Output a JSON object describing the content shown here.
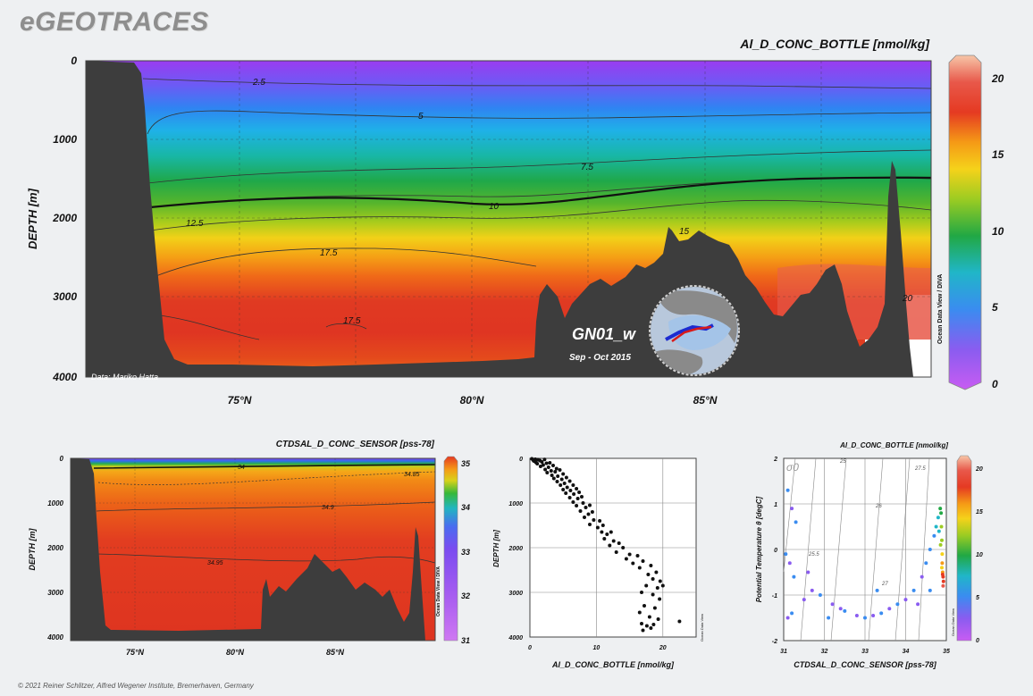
{
  "header": {
    "logo": "eGEOTRACES",
    "copyright": "© 2021 Reiner Schlitzer, Alfred Wegener Institute, Bremerhaven, Germany"
  },
  "chart_data": [
    {
      "type": "heatmap",
      "title": "Al_D_CONC_BOTTLE [nmol/kg]",
      "xlabel": "",
      "ylabel": "DEPTH [m]",
      "x_ticks": [
        "75°N",
        "80°N",
        "85°N"
      ],
      "x_tick_values": [
        75,
        80,
        85
      ],
      "xlim": [
        71.5,
        89.5
      ],
      "y_ticks": [
        "0",
        "1000",
        "2000",
        "3000",
        "4000"
      ],
      "y_tick_values": [
        0,
        1000,
        2000,
        3000,
        4000
      ],
      "ylim": [
        4000,
        0
      ],
      "colorbar": {
        "ticks": [
          "0",
          "5",
          "10",
          "15",
          "20"
        ],
        "range": [
          0,
          21
        ]
      },
      "contour_labels": [
        "2.5",
        "5",
        "7.5",
        "10",
        "12.5",
        "17.5",
        "17.5",
        "15",
        "20"
      ],
      "credit": "Data: Mariko Hatta",
      "section_label": "GN01_w",
      "date_label": "Sep - Oct 2015",
      "watermark": "Ocean Data View / DIVA"
    },
    {
      "type": "heatmap",
      "title": "CTDSAL_D_CONC_SENSOR [pss-78]",
      "xlabel": "",
      "ylabel": "DEPTH [m]",
      "x_ticks": [
        "75°N",
        "80°N",
        "85°N"
      ],
      "x_tick_values": [
        75,
        80,
        85
      ],
      "xlim": [
        71.5,
        89.5
      ],
      "y_ticks": [
        "0",
        "1000",
        "2000",
        "3000",
        "4000"
      ],
      "y_tick_values": [
        0,
        1000,
        2000,
        3000,
        4000
      ],
      "ylim": [
        4100,
        0
      ],
      "colorbar": {
        "ticks": [
          "31",
          "32",
          "33",
          "34",
          "35"
        ],
        "range": [
          31,
          35
        ]
      },
      "contour_labels": [
        "34",
        "34.85",
        "34.9",
        "34.95"
      ],
      "watermark": "Ocean Data View / DIVA"
    },
    {
      "type": "scatter",
      "title": "",
      "xlabel": "Al_D_CONC_BOTTLE [nmol/kg]",
      "ylabel": "DEPTH [m]",
      "x_ticks": [
        "0",
        "10",
        "20"
      ],
      "y_ticks": [
        "0",
        "1000",
        "2000",
        "3000",
        "4000"
      ],
      "xlim": [
        0,
        25
      ],
      "ylim": [
        4000,
        0
      ],
      "watermark": "Ocean Data View",
      "points": [
        [
          0.3,
          10
        ],
        [
          0.8,
          20
        ],
        [
          0.5,
          40
        ],
        [
          1.2,
          30
        ],
        [
          0.6,
          60
        ],
        [
          1.5,
          50
        ],
        [
          2.2,
          25
        ],
        [
          0.9,
          90
        ],
        [
          1.8,
          80
        ],
        [
          1.1,
          120
        ],
        [
          2.5,
          110
        ],
        [
          2.0,
          150
        ],
        [
          3.0,
          100
        ],
        [
          1.6,
          180
        ],
        [
          2.8,
          200
        ],
        [
          3.5,
          160
        ],
        [
          2.3,
          250
        ],
        [
          3.2,
          280
        ],
        [
          4.0,
          230
        ],
        [
          2.6,
          320
        ],
        [
          3.8,
          300
        ],
        [
          4.5,
          260
        ],
        [
          3.3,
          380
        ],
        [
          4.2,
          400
        ],
        [
          5.0,
          350
        ],
        [
          3.6,
          450
        ],
        [
          4.8,
          470
        ],
        [
          5.5,
          430
        ],
        [
          4.1,
          520
        ],
        [
          5.2,
          560
        ],
        [
          6.0,
          510
        ],
        [
          4.6,
          600
        ],
        [
          5.6,
          650
        ],
        [
          6.5,
          600
        ],
        [
          5.0,
          700
        ],
        [
          6.1,
          720
        ],
        [
          7.0,
          680
        ],
        [
          5.4,
          780
        ],
        [
          6.6,
          800
        ],
        [
          7.4,
          760
        ],
        [
          6.0,
          880
        ],
        [
          7.2,
          900
        ],
        [
          7.8,
          860
        ],
        [
          6.5,
          980
        ],
        [
          8.0,
          1000
        ],
        [
          7.0,
          1060
        ],
        [
          8.4,
          1100
        ],
        [
          9.0,
          1050
        ],
        [
          7.6,
          1180
        ],
        [
          8.8,
          1250
        ],
        [
          9.4,
          1200
        ],
        [
          8.2,
          1320
        ],
        [
          9.6,
          1380
        ],
        [
          10.5,
          1400
        ],
        [
          9.0,
          1480
        ],
        [
          10.2,
          1550
        ],
        [
          11.0,
          1500
        ],
        [
          10.8,
          1650
        ],
        [
          11.6,
          1700
        ],
        [
          12.2,
          1650
        ],
        [
          11.2,
          1800
        ],
        [
          12.6,
          1850
        ],
        [
          13.4,
          1900
        ],
        [
          12.0,
          1950
        ],
        [
          14.0,
          2000
        ],
        [
          13.0,
          2100
        ],
        [
          15.0,
          2150
        ],
        [
          14.5,
          2250
        ],
        [
          16.2,
          2180
        ],
        [
          15.5,
          2350
        ],
        [
          17.0,
          2300
        ],
        [
          16.5,
          2450
        ],
        [
          18.2,
          2400
        ],
        [
          17.8,
          2600
        ],
        [
          19.0,
          2550
        ],
        [
          18.5,
          2700
        ],
        [
          19.6,
          2750
        ],
        [
          17.5,
          2850
        ],
        [
          19.2,
          2900
        ],
        [
          20.0,
          2850
        ],
        [
          16.8,
          3000
        ],
        [
          18.5,
          3050
        ],
        [
          19.5,
          3150
        ],
        [
          17.2,
          3300
        ],
        [
          18.8,
          3350
        ],
        [
          16.5,
          3450
        ],
        [
          18.0,
          3550
        ],
        [
          19.3,
          3600
        ],
        [
          16.8,
          3700
        ],
        [
          17.6,
          3750
        ],
        [
          18.6,
          3720
        ],
        [
          22.5,
          3650
        ],
        [
          17.0,
          3850
        ],
        [
          18.2,
          3800
        ]
      ]
    },
    {
      "type": "scatter",
      "title": "Al_D_CONC_BOTTLE [nmol/kg]",
      "xlabel": "CTDSAL_D_CONC_SENSOR [pss-78]",
      "ylabel": "Potential Temperature θ [degC]",
      "x_ticks": [
        "31",
        "32",
        "33",
        "34",
        "35"
      ],
      "y_ticks": [
        "-2",
        "-1",
        "0",
        "1",
        "2"
      ],
      "xlim": [
        31,
        35
      ],
      "ylim": [
        -2,
        2
      ],
      "isopycnal_symbol": "σ0",
      "isopycnal_labels": [
        "25",
        "25.5",
        "26",
        "27",
        "27.5"
      ],
      "colorbar": {
        "ticks": [
          "0",
          "5",
          "10",
          "15",
          "20"
        ],
        "range": [
          0,
          21
        ]
      },
      "watermark": "Ocean Data View",
      "points": [
        [
          31.1,
          1.3,
          6
        ],
        [
          31.2,
          0.9,
          5
        ],
        [
          31.3,
          0.6,
          6
        ],
        [
          31.05,
          -0.1,
          7
        ],
        [
          31.15,
          -0.3,
          5
        ],
        [
          31.25,
          -0.6,
          6
        ],
        [
          31.1,
          -1.5,
          5
        ],
        [
          31.2,
          -1.4,
          6
        ],
        [
          31.7,
          -0.9,
          5
        ],
        [
          31.9,
          -1.0,
          6
        ],
        [
          32.2,
          -1.2,
          5
        ],
        [
          32.5,
          -1.35,
          6
        ],
        [
          32.8,
          -1.45,
          5
        ],
        [
          33.0,
          -1.5,
          6
        ],
        [
          33.2,
          -1.45,
          5
        ],
        [
          33.4,
          -1.4,
          6
        ],
        [
          33.6,
          -1.3,
          5
        ],
        [
          33.8,
          -1.2,
          6
        ],
        [
          34.0,
          -1.1,
          5
        ],
        [
          34.2,
          -0.9,
          6
        ],
        [
          34.4,
          -0.6,
          5
        ],
        [
          34.5,
          -0.3,
          6
        ],
        [
          34.6,
          0.0,
          6
        ],
        [
          34.7,
          0.3,
          7
        ],
        [
          34.75,
          0.5,
          8
        ],
        [
          34.8,
          0.7,
          9
        ],
        [
          34.85,
          0.9,
          10
        ],
        [
          34.87,
          0.8,
          11
        ],
        [
          34.88,
          0.5,
          12
        ],
        [
          34.89,
          0.2,
          13
        ],
        [
          34.9,
          -0.1,
          14
        ],
        [
          34.9,
          -0.3,
          16
        ],
        [
          34.91,
          -0.5,
          17
        ],
        [
          34.92,
          -0.6,
          18
        ],
        [
          34.93,
          -0.7,
          19
        ],
        [
          34.92,
          -0.8,
          20
        ],
        [
          34.6,
          -0.9,
          6
        ],
        [
          34.3,
          -1.2,
          5
        ],
        [
          32.4,
          -1.3,
          5
        ],
        [
          31.5,
          -1.1,
          5
        ],
        [
          33.3,
          -0.9,
          6
        ],
        [
          32.1,
          -1.5,
          6
        ],
        [
          31.6,
          -0.5,
          5
        ],
        [
          34.82,
          0.4,
          9
        ],
        [
          34.86,
          0.1,
          12
        ],
        [
          34.89,
          -0.4,
          15
        ],
        [
          34.91,
          -0.55,
          19
        ]
      ]
    }
  ]
}
